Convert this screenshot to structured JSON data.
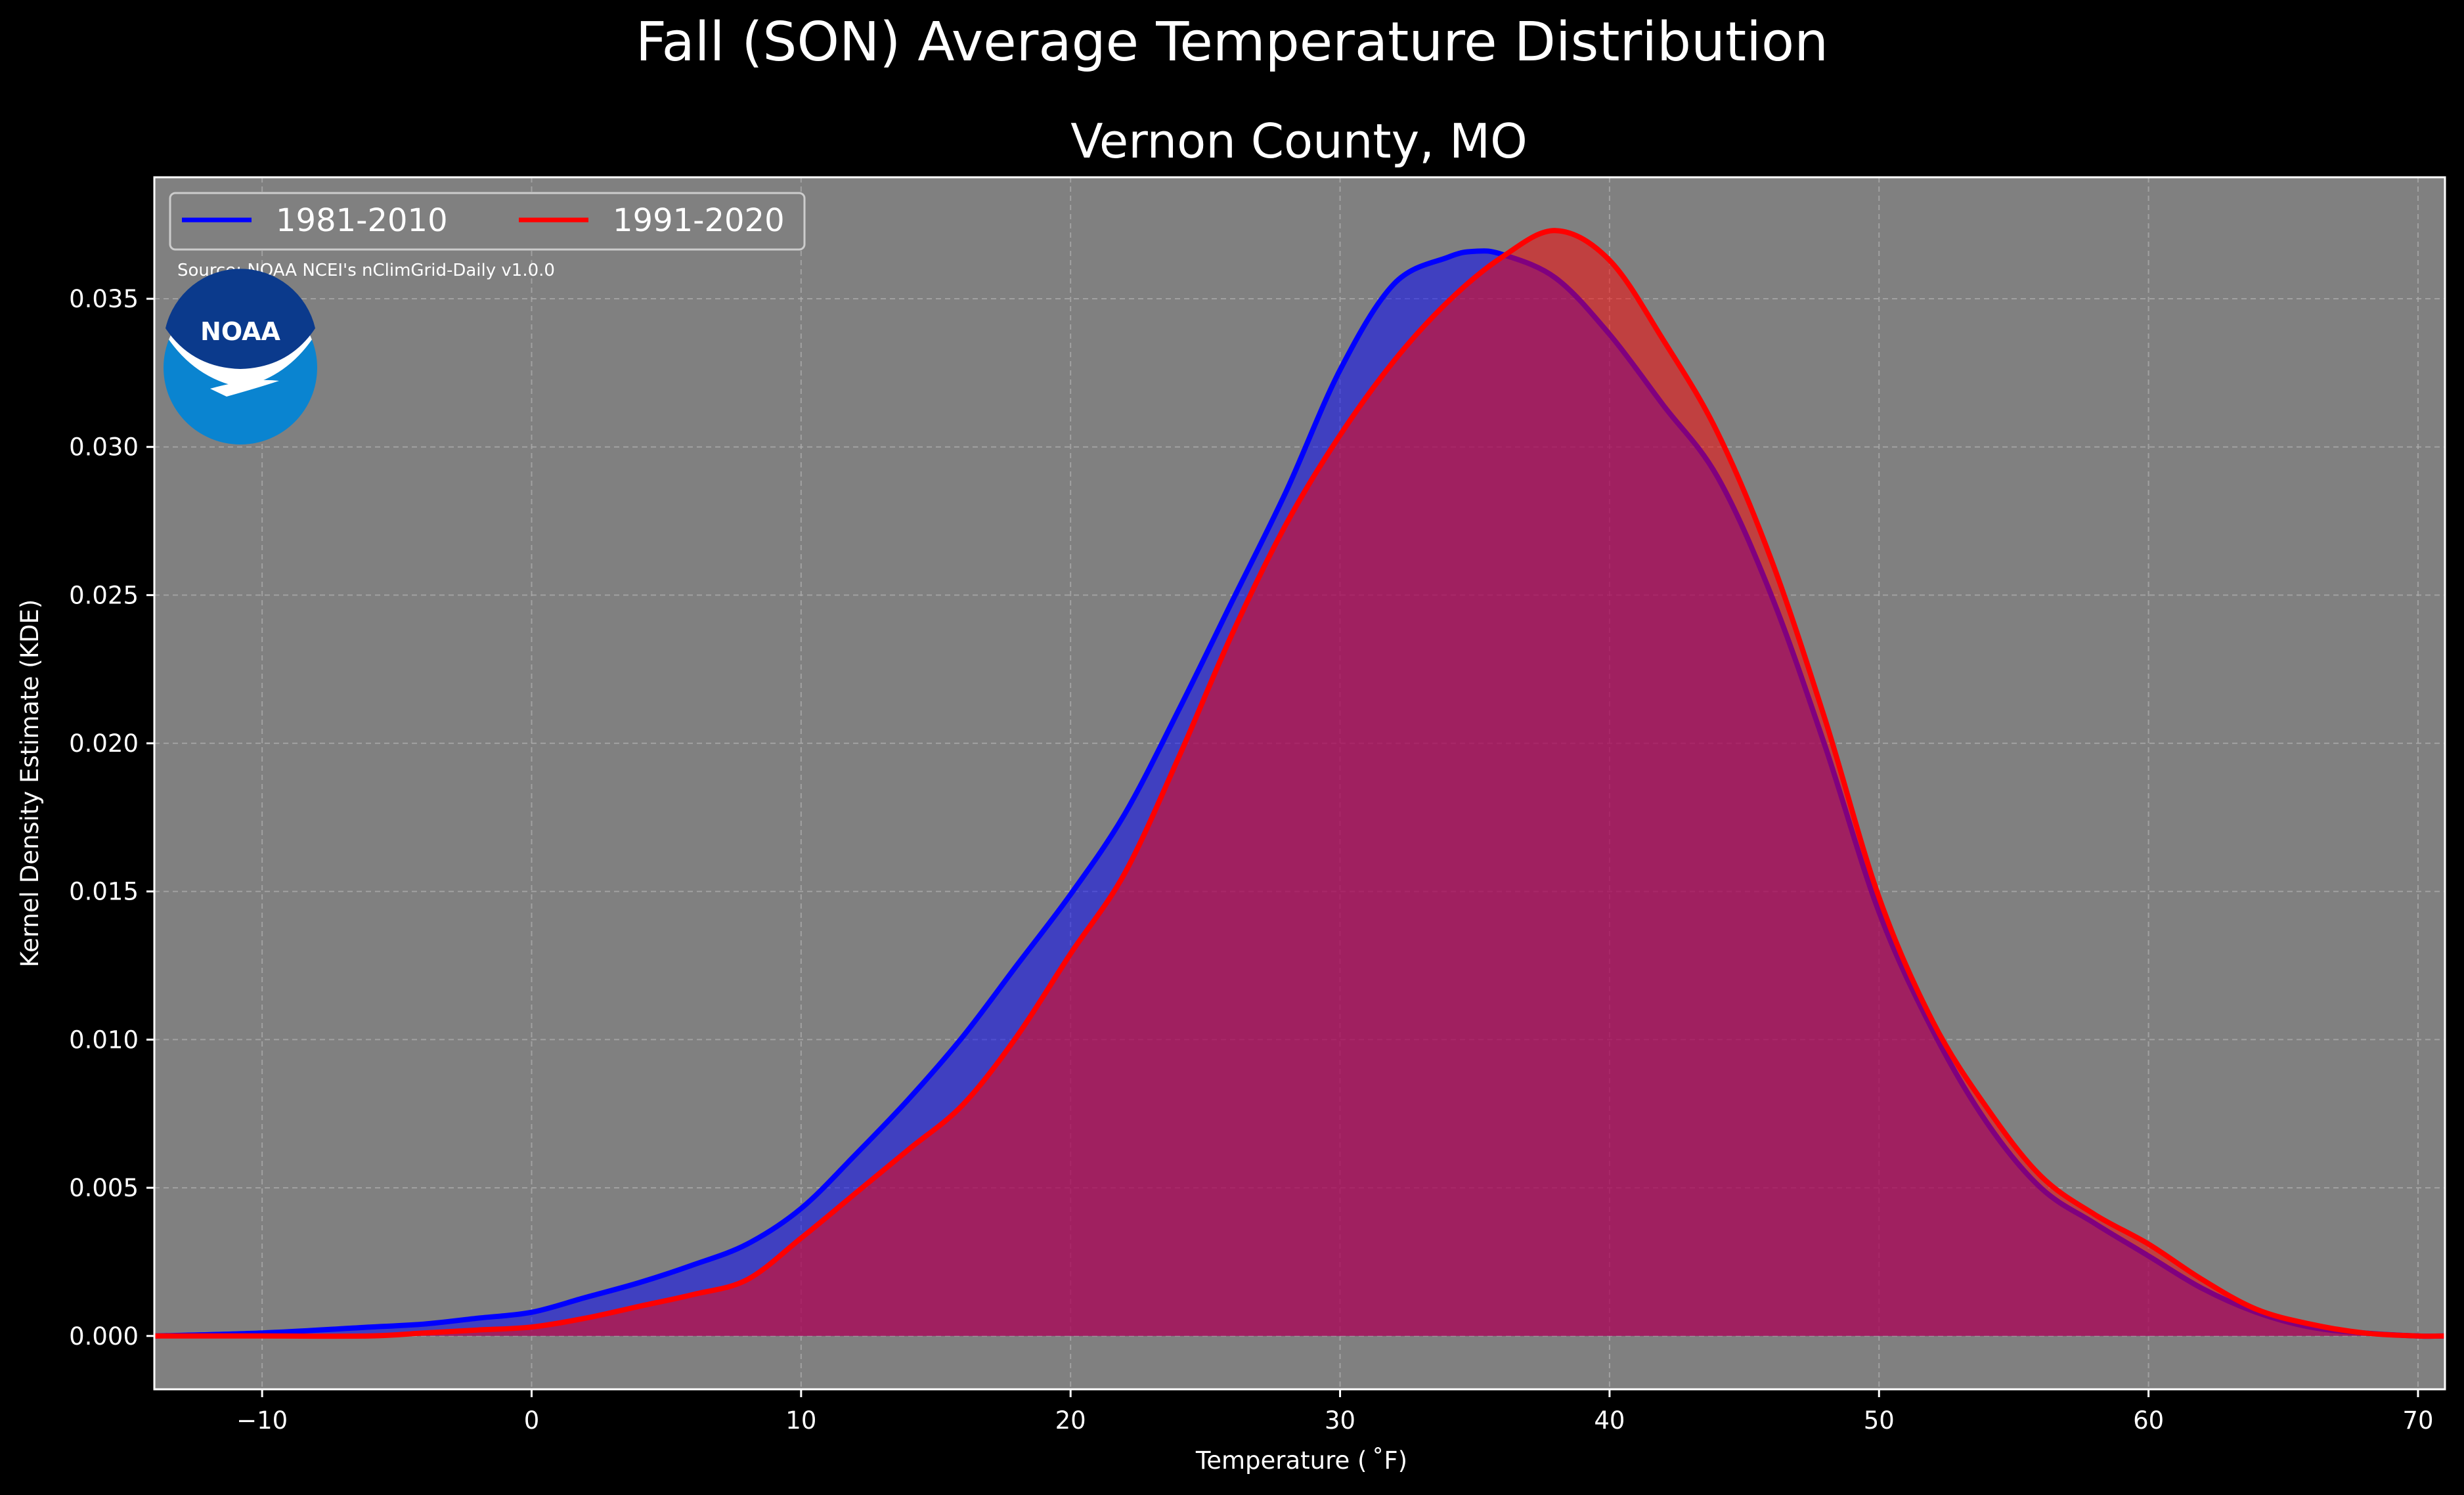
{
  "chart_data": {
    "type": "area",
    "title": "Fall (SON) Average Temperature Distribution",
    "subtitle": "Vernon County, MO",
    "xlabel": "Temperature ($^\\circ$F)",
    "xlabel_display": "Temperature ( ˚F)",
    "ylabel": "Kernel Density Estimate (KDE)",
    "source": "Source: NOAA NCEI's nClimGrid-Daily v1.0.0",
    "logo_text": "NOAA",
    "xlim": [
      -14,
      71
    ],
    "ylim": [
      -0.0018,
      0.0391
    ],
    "xticks": [
      -10,
      0,
      10,
      20,
      30,
      40,
      50,
      60,
      70
    ],
    "xtick_labels": [
      "−10",
      "0",
      "10",
      "20",
      "30",
      "40",
      "50",
      "60",
      "70"
    ],
    "yticks": [
      0.0,
      0.005,
      0.01,
      0.015,
      0.02,
      0.025,
      0.03,
      0.035
    ],
    "ytick_labels": [
      "0.000",
      "0.005",
      "0.010",
      "0.015",
      "0.020",
      "0.025",
      "0.030",
      "0.035"
    ],
    "grid": true,
    "legend_position": "top-left",
    "colors": {
      "background": "#000000",
      "plot_bg": "#808080",
      "text": "#ffffff"
    },
    "series": [
      {
        "name": "1981-2010",
        "color": "#0000ff",
        "fill": "#0000ff",
        "x": [
          -14,
          -10,
          -6,
          -4,
          -2,
          0,
          2,
          4,
          6,
          8,
          10,
          12,
          14,
          16,
          18,
          20,
          22,
          24,
          26,
          28,
          30,
          32,
          34,
          35,
          36,
          38,
          40,
          42,
          44,
          46,
          48,
          50,
          52,
          54,
          56,
          58,
          60,
          62,
          64,
          66,
          68,
          70,
          71
        ],
        "y": [
          0.0,
          0.0001,
          0.0003,
          0.0004,
          0.0006,
          0.0008,
          0.0013,
          0.0018,
          0.0024,
          0.0031,
          0.0043,
          0.0061,
          0.008,
          0.0101,
          0.0125,
          0.0149,
          0.0176,
          0.0211,
          0.0248,
          0.0285,
          0.0326,
          0.0355,
          0.0364,
          0.0366,
          0.0365,
          0.0357,
          0.0338,
          0.0314,
          0.029,
          0.025,
          0.0199,
          0.0143,
          0.0103,
          0.0072,
          0.005,
          0.0038,
          0.0027,
          0.0016,
          0.0008,
          0.0003,
          0.0001,
          0.0,
          0.0
        ]
      },
      {
        "name": "1991-2020",
        "color": "#ff0000",
        "fill": "#ff0000",
        "x": [
          -14,
          -10,
          -6,
          -4,
          -2,
          0,
          2,
          4,
          6,
          8,
          10,
          12,
          14,
          16,
          18,
          20,
          22,
          24,
          26,
          28,
          30,
          32,
          34,
          36,
          38,
          40,
          42,
          44,
          46,
          48,
          50,
          52,
          54,
          56,
          58,
          60,
          62,
          64,
          66,
          68,
          70,
          71
        ],
        "y": [
          0.0,
          0.0,
          0.0,
          0.0001,
          0.0002,
          0.0003,
          0.0006,
          0.001,
          0.0014,
          0.0019,
          0.0033,
          0.0048,
          0.0063,
          0.0078,
          0.0101,
          0.0129,
          0.0156,
          0.0195,
          0.0237,
          0.0274,
          0.0304,
          0.0329,
          0.0349,
          0.0364,
          0.0373,
          0.0363,
          0.0336,
          0.0305,
          0.0262,
          0.0208,
          0.0148,
          0.0106,
          0.0077,
          0.0054,
          0.0041,
          0.0031,
          0.0019,
          0.0009,
          0.0004,
          0.0001,
          0.0,
          0.0
        ]
      }
    ]
  }
}
